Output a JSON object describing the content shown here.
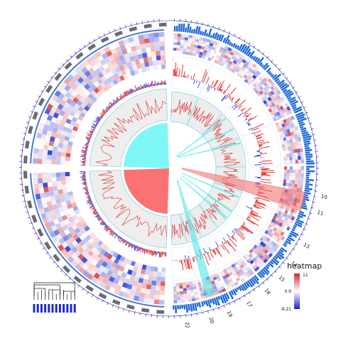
{
  "chart_data": {
    "type": "circos",
    "chromosome_labels": [
      "10",
      "11",
      "13",
      "14",
      "15",
      "16",
      "17",
      "19",
      "20",
      "22"
    ],
    "tracks": [
      "ideogram",
      "gene-density",
      "heatmap",
      "bar",
      "line",
      "links"
    ],
    "heatmap_legend": {
      "title": "heatmap",
      "ticks": [
        "11",
        "0.9",
        "-9.21"
      ],
      "colors": {
        "high": "#d62728",
        "mid": "#ffffff",
        "low": "#1f1fc4"
      }
    },
    "link_colors": {
      "red": "#f06a6a",
      "cyan": "#55e6e6"
    },
    "colors": {
      "ideogram": "#1e6bd6",
      "bar_positive": "#e01818",
      "bar_negative": "#1a2bd0",
      "line": "#e03030",
      "heatmap_high": "#e04a4a",
      "heatmap_low": "#2a3fd8",
      "panel_bg": "#eeeeee",
      "panel_border": "#8fd6e0",
      "sector_cyan": "#7ff7f7",
      "sector_red": "#fb7272"
    },
    "dendrogram": {
      "leaves": 12
    }
  }
}
